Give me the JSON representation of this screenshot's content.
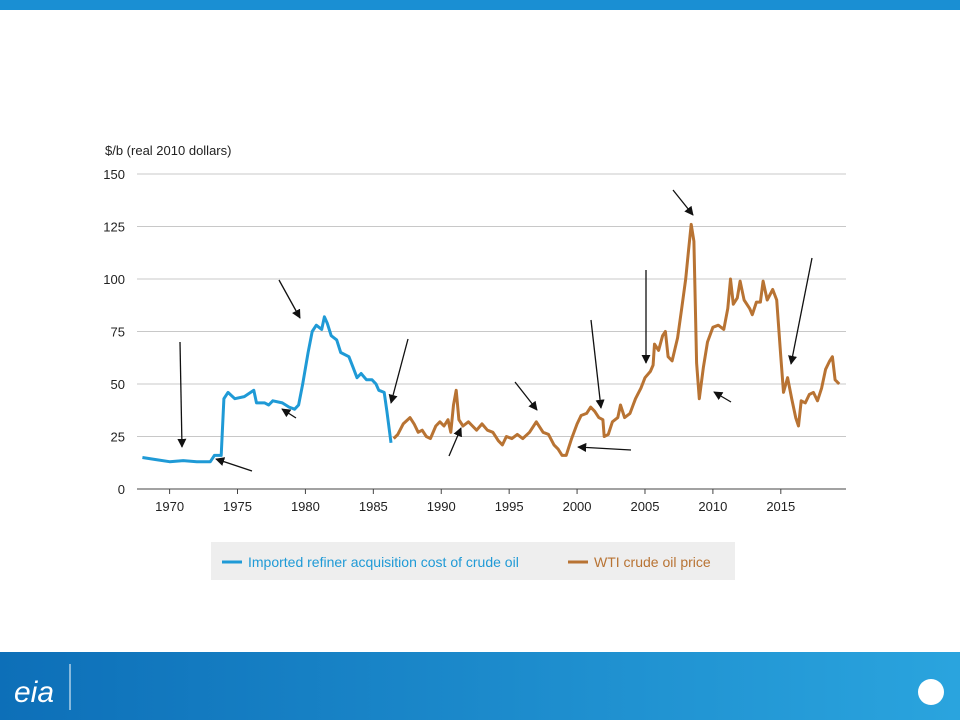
{
  "chart_data": {
    "type": "line",
    "y_label": "$/b (real 2010 dollars)",
    "xlim": [
      1967.6,
      2019.8
    ],
    "xticks": [
      1970,
      1975,
      1980,
      1985,
      1990,
      1995,
      2000,
      2005,
      2010,
      2015
    ],
    "ylim": [
      0,
      150
    ],
    "yticks": [
      0,
      25,
      50,
      75,
      100,
      125,
      150
    ],
    "grid": true,
    "series": [
      {
        "name": "Imported refiner acquisition cost of crude oil",
        "color": "#1f9ad6",
        "x": [
          1968.0,
          1969,
          1970,
          1971,
          1972,
          1973,
          1973.3,
          1973.8,
          1974,
          1974.3,
          1974.8,
          1975.5,
          1976.2,
          1976.4,
          1977,
          1977.3,
          1977.6,
          1978.3,
          1978.8,
          1979.2,
          1979.5,
          1979.8,
          1980.2,
          1980.5,
          1980.8,
          1981.2,
          1981.4,
          1981.6,
          1981.9,
          1982.3,
          1982.6,
          1983.2,
          1983.5,
          1983.8,
          1984.1,
          1984.5,
          1984.9,
          1985.2,
          1985.4,
          1985.8,
          1986.0,
          1986.3
        ],
        "values": [
          15,
          14,
          13,
          13.5,
          13,
          13,
          16,
          16,
          43,
          46,
          43,
          44,
          47,
          41,
          41,
          40,
          42,
          41,
          39,
          38,
          40,
          50,
          65,
          75,
          78,
          76,
          82,
          79,
          73,
          71,
          65,
          63,
          58,
          53,
          55,
          52,
          52,
          50,
          47,
          46,
          37,
          22
        ]
      },
      {
        "name": "WTI crude oil price",
        "color": "#b87333",
        "x": [
          1986.5,
          1986.8,
          1987.2,
          1987.7,
          1988.0,
          1988.3,
          1988.6,
          1988.9,
          1989.2,
          1989.6,
          1989.9,
          1990.2,
          1990.5,
          1990.7,
          1990.9,
          1991.1,
          1991.3,
          1991.6,
          1992,
          1992.3,
          1992.6,
          1993,
          1993.4,
          1993.8,
          1994.2,
          1994.5,
          1994.8,
          1995.2,
          1995.6,
          1996,
          1996.5,
          1997,
          1997.5,
          1997.9,
          1998.3,
          1998.6,
          1998.9,
          1999.2,
          1999.6,
          2000,
          2000.3,
          2000.7,
          2001,
          2001.3,
          2001.6,
          2001.9,
          2002,
          2002.3,
          2002.6,
          2003,
          2003.2,
          2003.5,
          2003.9,
          2004.3,
          2004.7,
          2005,
          2005.4,
          2005.6,
          2005.7,
          2006,
          2006.3,
          2006.5,
          2006.7,
          2007,
          2007.4,
          2007.7,
          2008,
          2008.2,
          2008.4,
          2008.6,
          2008.8,
          2009,
          2009.3,
          2009.6,
          2010,
          2010.4,
          2010.8,
          2011.1,
          2011.3,
          2011.5,
          2011.8,
          2012,
          2012.3,
          2012.7,
          2012.9,
          2013.2,
          2013.5,
          2013.7,
          2014,
          2014.4,
          2014.7,
          2015,
          2015.2,
          2015.5,
          2015.8,
          2016.1,
          2016.3,
          2016.5,
          2016.8,
          2017.1,
          2017.4,
          2017.7,
          2018,
          2018.3,
          2018.6,
          2018.8,
          2019,
          2019.3
        ],
        "values": [
          24,
          26,
          31,
          34,
          31,
          27,
          28,
          25,
          24,
          30,
          32,
          30,
          33,
          27,
          40,
          47,
          33,
          30,
          32,
          30,
          28,
          31,
          28,
          27,
          23,
          21,
          25,
          24,
          26,
          24,
          27,
          32,
          27,
          26,
          21,
          19,
          16,
          16,
          24,
          31,
          35,
          36,
          39,
          37,
          34,
          33,
          25,
          26,
          32,
          34,
          40,
          34,
          36,
          43,
          48,
          53,
          56,
          59,
          69,
          66,
          73,
          75,
          63,
          61,
          72,
          86,
          100,
          113,
          126,
          118,
          60,
          43,
          58,
          70,
          77,
          78,
          76,
          86,
          100,
          88,
          91,
          99,
          90,
          86,
          83,
          89,
          89,
          99,
          90,
          95,
          90,
          63,
          46,
          53,
          43,
          34,
          30,
          42,
          41,
          45,
          46,
          42,
          48,
          57,
          61,
          63,
          52,
          50
        ]
      }
    ]
  },
  "footer": {
    "logo": "eia"
  }
}
